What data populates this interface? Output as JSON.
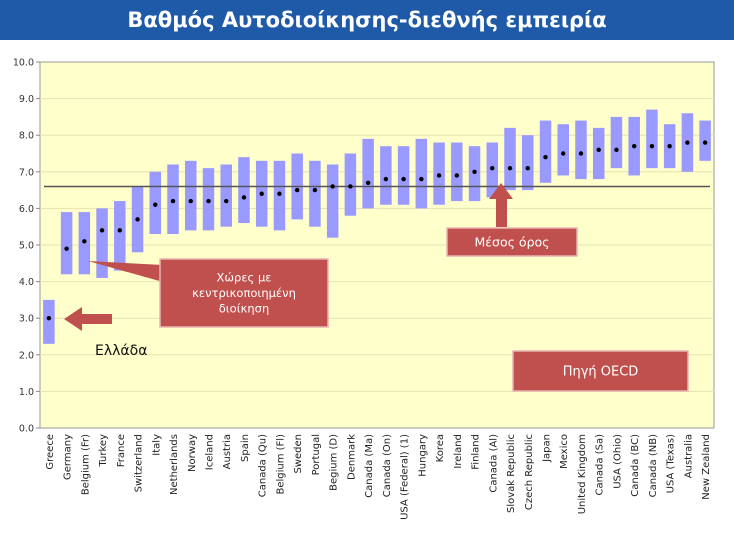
{
  "page": {
    "title": "Βαθμός Αυτοδιοίκησης-διεθνής εμπειρία"
  },
  "chart_data": {
    "type": "range-dot",
    "ylim": [
      0,
      10
    ],
    "yticks": [
      "0.0",
      "1.0",
      "2.0",
      "3.0",
      "4.0",
      "5.0",
      "6.0",
      "7.0",
      "8.0",
      "9.0",
      "10.0"
    ],
    "average": 6.6,
    "categories": [
      "Greece",
      "Germany",
      "Belgium (Fr)",
      "Turkey",
      "France",
      "Switzerland",
      "Italy",
      "Netherlands",
      "Norway",
      "Iceland",
      "Austria",
      "Spain",
      "Canada (Qu)",
      "Belgium (Fl)",
      "Sweden",
      "Portugal",
      "Begium (D)",
      "Denmark",
      "Canada (Ma)",
      "Canada (On)",
      "USA (Federal) (1)",
      "Hungary",
      "Korea",
      "Ireland",
      "Finland",
      "Canada (Al)",
      "Slovak Republic",
      "Czech Republic",
      "Japan",
      "Mexico",
      "United Kingdom",
      "Canada (Sa)",
      "USA (Ohio)",
      "Canada (BC)",
      "Canada (NB)",
      "USA (Texas)",
      "Australia",
      "New Zealand"
    ],
    "low": [
      2.3,
      4.2,
      4.2,
      4.1,
      4.3,
      4.8,
      5.3,
      5.3,
      5.4,
      5.4,
      5.5,
      5.6,
      5.5,
      5.4,
      5.7,
      5.5,
      5.2,
      5.8,
      6.0,
      6.1,
      6.1,
      6.0,
      6.1,
      6.2,
      6.2,
      6.3,
      6.5,
      6.5,
      6.7,
      6.9,
      6.8,
      6.8,
      7.1,
      6.9,
      7.1,
      7.1,
      7.0,
      7.3
    ],
    "high": [
      3.5,
      5.9,
      5.9,
      6.0,
      6.2,
      6.6,
      7.0,
      7.2,
      7.3,
      7.1,
      7.2,
      7.4,
      7.3,
      7.3,
      7.5,
      7.3,
      7.2,
      7.5,
      7.9,
      7.7,
      7.7,
      7.9,
      7.8,
      7.8,
      7.7,
      7.8,
      8.2,
      8.0,
      8.4,
      8.3,
      8.4,
      8.2,
      8.5,
      8.5,
      8.7,
      8.3,
      8.6,
      8.4
    ],
    "value": [
      3.0,
      4.9,
      5.1,
      5.4,
      5.4,
      5.7,
      6.1,
      6.2,
      6.2,
      6.2,
      6.2,
      6.3,
      6.4,
      6.4,
      6.5,
      6.5,
      6.6,
      6.6,
      6.7,
      6.8,
      6.8,
      6.8,
      6.9,
      6.9,
      7.0,
      7.1,
      7.1,
      7.1,
      7.4,
      7.5,
      7.5,
      7.6,
      7.6,
      7.7,
      7.7,
      7.7,
      7.8,
      7.8
    ],
    "colors": {
      "plot_bg": "#ffffcc",
      "bar": "#9999ff",
      "dot": "#000000",
      "avg_line": "#555555",
      "callout": "#c0504d",
      "arrow": "#c0504d",
      "title_bg": "#1f5aa8"
    },
    "annotations": {
      "centralized_label": "Χώρες με κεντρικοποιημένη διοίκηση",
      "greece_label": "Ελλάδα",
      "average_label": "Μέσος όρος",
      "source_label": "Πηγή OECD"
    }
  }
}
